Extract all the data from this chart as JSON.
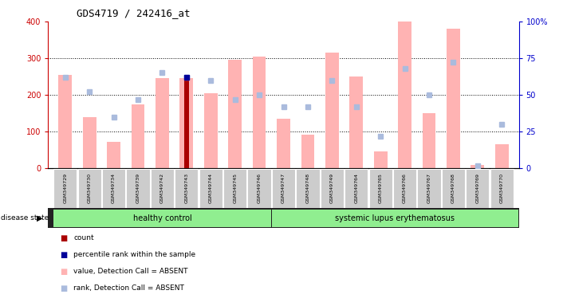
{
  "title": "GDS4719 / 242416_at",
  "samples": [
    "GSM349729",
    "GSM349730",
    "GSM349734",
    "GSM349739",
    "GSM349742",
    "GSM349743",
    "GSM349744",
    "GSM349745",
    "GSM349746",
    "GSM349747",
    "GSM349748",
    "GSM349749",
    "GSM349764",
    "GSM349765",
    "GSM349766",
    "GSM349767",
    "GSM349768",
    "GSM349769",
    "GSM349770"
  ],
  "values_absent": [
    255,
    140,
    72,
    175,
    245,
    245,
    205,
    295,
    305,
    135,
    92,
    315,
    250,
    45,
    400,
    150,
    380,
    10,
    65
  ],
  "rank_absent": [
    62,
    52,
    35,
    47,
    65,
    62,
    60,
    47,
    50,
    42,
    42,
    60,
    42,
    22,
    68,
    50,
    72,
    2,
    30
  ],
  "count_value": [
    0,
    0,
    0,
    0,
    0,
    240,
    0,
    0,
    0,
    0,
    0,
    0,
    0,
    0,
    0,
    0,
    0,
    0,
    0
  ],
  "percentile_rank": [
    0,
    0,
    0,
    0,
    0,
    62,
    0,
    0,
    0,
    0,
    0,
    0,
    0,
    0,
    0,
    0,
    0,
    0,
    0
  ],
  "healthy_control_count": 9,
  "disease_group1_label": "healthy control",
  "disease_group2_label": "systemic lupus erythematosus",
  "ylim_left": [
    0,
    400
  ],
  "ylim_right": [
    0,
    100
  ],
  "yticks_left": [
    0,
    100,
    200,
    300,
    400
  ],
  "yticks_right": [
    0,
    25,
    50,
    75,
    100
  ],
  "bar_color_absent": "#FFB3B3",
  "bar_color_count": "#AA0000",
  "dot_color_rank_absent": "#AABBDD",
  "dot_color_percentile": "#000099",
  "axis_color_left": "#CC0000",
  "axis_color_right": "#0000CC",
  "group1_color": "#90EE90",
  "group2_color": "#90EE90",
  "legend_items": [
    "count",
    "percentile rank within the sample",
    "value, Detection Call = ABSENT",
    "rank, Detection Call = ABSENT"
  ],
  "legend_colors": [
    "#AA0000",
    "#000099",
    "#FFB3B3",
    "#AABBDD"
  ]
}
